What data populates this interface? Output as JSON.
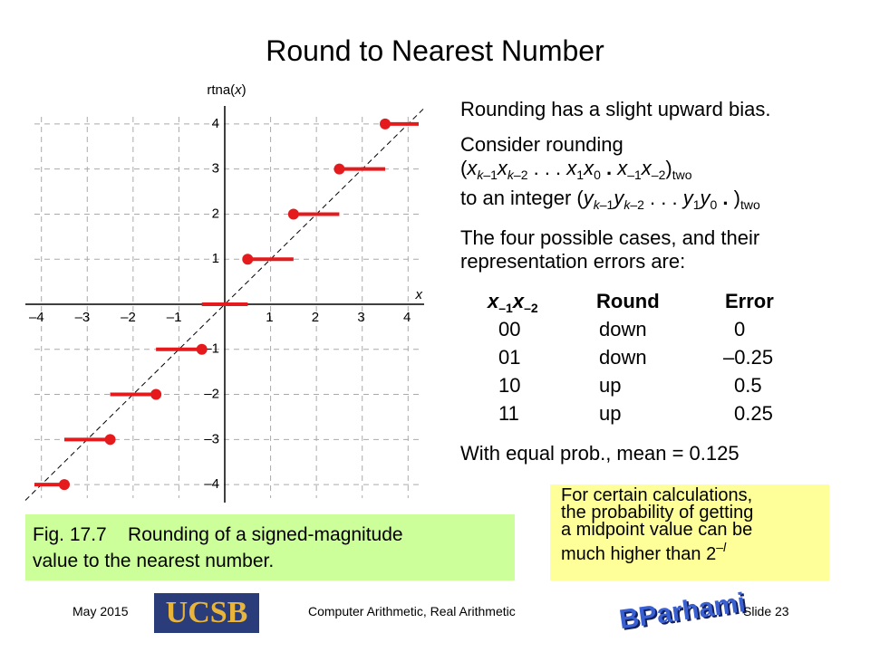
{
  "title": "Round to Nearest Number",
  "chart_data": {
    "type": "step",
    "y_label": [
      {
        "t": "rtna("
      },
      {
        "t": "x",
        "i": true
      },
      {
        "t": ")"
      }
    ],
    "x_label": [
      {
        "t": "x",
        "i": true
      }
    ],
    "values": [
      -4,
      -3,
      -2,
      -1,
      0,
      1,
      2,
      3,
      4
    ],
    "x_from": [
      -4.5,
      -3.5,
      -2.5,
      -1.5,
      -0.5,
      0.5,
      1.5,
      2.5,
      3.5
    ],
    "x_to": [
      -3.5,
      -2.5,
      -1.5,
      -0.5,
      0.5,
      1.5,
      2.5,
      3.5,
      4.5
    ],
    "color": "#e41a1c",
    "xlim": [
      -4.35,
      4.35
    ],
    "ylim": [
      -4.4,
      4.4
    ],
    "xticks": [
      {
        "value": -4,
        "label": "–4"
      },
      {
        "value": -3,
        "label": "–3"
      },
      {
        "value": -2,
        "label": "–2"
      },
      {
        "value": -1,
        "label": "–1"
      },
      1,
      2,
      3,
      4
    ],
    "yticks": [
      {
        "value": -4,
        "label": "–4"
      },
      {
        "value": -3,
        "label": "–3"
      },
      {
        "value": -2,
        "label": "–2"
      },
      {
        "value": -1,
        "label": "–1"
      },
      1,
      2,
      3,
      4
    ],
    "grid": true
  },
  "text": {
    "bias": [
      [
        {
          "t": "Rounding has a slight upward bias."
        }
      ]
    ],
    "consider": [
      [
        {
          "t": "Consider rounding"
        }
      ],
      [
        {
          "t": "("
        },
        {
          "t": "x",
          "i": true
        },
        {
          "t": "k",
          "i": true,
          "s": "sub"
        },
        {
          "t": "–1",
          "s": "sub"
        },
        {
          "t": "x",
          "i": true
        },
        {
          "t": "k",
          "i": true,
          "s": "sub"
        },
        {
          "t": "–2",
          "s": "sub"
        },
        {
          "t": " . . . "
        },
        {
          "t": "x",
          "i": true
        },
        {
          "t": "1",
          "s": "sub"
        },
        {
          "t": "x",
          "i": true
        },
        {
          "t": "0",
          "s": "sub"
        },
        {
          "t": " . ",
          "b": true
        },
        {
          "t": "x",
          "i": true
        },
        {
          "t": "–1",
          "s": "sub"
        },
        {
          "t": "x",
          "i": true
        },
        {
          "t": "–2",
          "s": "sub"
        },
        {
          "t": ")"
        },
        {
          "t": "two",
          "s": "sub"
        }
      ],
      [
        {
          "t": "to an integer ("
        },
        {
          "t": "y",
          "i": true
        },
        {
          "t": "k",
          "i": true,
          "s": "sub"
        },
        {
          "t": "–1",
          "s": "sub"
        },
        {
          "t": "y",
          "i": true
        },
        {
          "t": "k",
          "i": true,
          "s": "sub"
        },
        {
          "t": "–2",
          "s": "sub"
        },
        {
          "t": " . . . "
        },
        {
          "t": "y",
          "i": true
        },
        {
          "t": "1",
          "s": "sub"
        },
        {
          "t": "y",
          "i": true
        },
        {
          "t": "0",
          "s": "sub"
        },
        {
          "t": " . ",
          "b": true
        },
        {
          "t": ")"
        },
        {
          "t": "two",
          "s": "sub"
        }
      ]
    ],
    "cases": [
      [
        {
          "t": "The four possible cases, and their"
        }
      ],
      [
        {
          "t": "representation errors are:"
        }
      ]
    ],
    "mean": [
      [
        {
          "t": "With equal prob., mean = 0.125"
        }
      ]
    ]
  },
  "table": {
    "header": [
      [
        {
          "t": "x",
          "i": true,
          "b": true
        },
        {
          "t": "–1",
          "s": "sub",
          "b": true
        },
        {
          "t": "x",
          "i": true,
          "b": true
        },
        {
          "t": "–2",
          "s": "sub",
          "b": true
        }
      ],
      [
        {
          "t": "Round",
          "b": true
        }
      ],
      [
        {
          "t": "Error",
          "b": true
        }
      ]
    ],
    "rows": [
      [
        "00",
        "down",
        "0"
      ],
      [
        "01",
        "down",
        "–0.25"
      ],
      [
        "10",
        "up",
        "0.5"
      ],
      [
        "11",
        "up",
        "0.25"
      ]
    ]
  },
  "note": [
    [
      {
        "t": "For certain calculations,"
      }
    ],
    [
      {
        "t": "the probability of getting"
      }
    ],
    [
      {
        "t": "a midpoint value can be"
      }
    ],
    [
      {
        "t": "much higher than 2"
      },
      {
        "t": "–",
        "s": "sup"
      },
      {
        "t": "l",
        "s": "sup",
        "i": true
      }
    ]
  ],
  "caption": [
    [
      {
        "t": "Fig. 17.7    Rounding of a signed-magnitude"
      }
    ],
    [
      {
        "t": "value to the nearest number."
      }
    ]
  ],
  "footer": {
    "date": "May 2015",
    "logo1": "UCSB",
    "course": "Computer Arithmetic, Real Arithmetic",
    "logo2": "BParhami",
    "slide": "Slide 23"
  }
}
